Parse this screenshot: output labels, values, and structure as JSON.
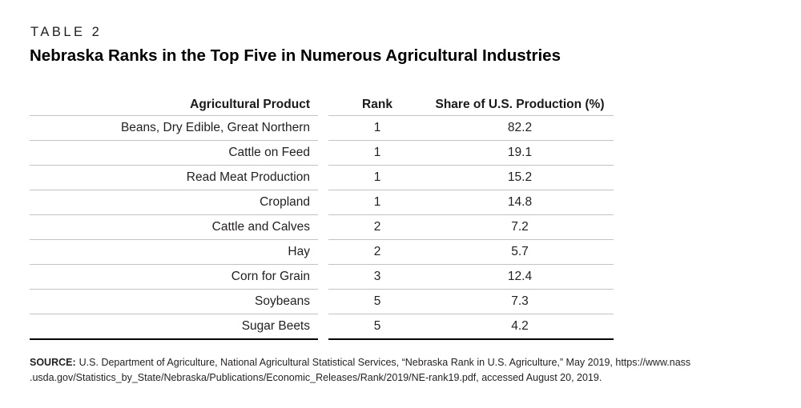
{
  "label": "TABLE 2",
  "title": "Nebraska Ranks in the Top Five in Numerous Agricultural Industries",
  "table": {
    "columns": [
      "Agricultural Product",
      "Rank",
      "Share of U.S. Production (%)"
    ],
    "rows": [
      {
        "product": "Beans, Dry Edible, Great Northern",
        "rank": "1",
        "share": "82.2"
      },
      {
        "product": "Cattle on Feed",
        "rank": "1",
        "share": "19.1"
      },
      {
        "product": "Read Meat Production",
        "rank": "1",
        "share": "15.2"
      },
      {
        "product": "Cropland",
        "rank": "1",
        "share": "14.8"
      },
      {
        "product": "Cattle and Calves",
        "rank": "2",
        "share": "7.2"
      },
      {
        "product": "Hay",
        "rank": "2",
        "share": "5.7"
      },
      {
        "product": "Corn for Grain",
        "rank": "3",
        "share": "12.4"
      },
      {
        "product": "Soybeans",
        "rank": "5",
        "share": "7.3"
      },
      {
        "product": "Sugar Beets",
        "rank": "5",
        "share": "4.2"
      }
    ]
  },
  "source": {
    "label": "SOURCE:",
    "line1": "U.S. Department of Agriculture, National Agricultural Statistical Services, “Nebraska Rank in U.S. Agriculture,” May 2019, https://www.nass",
    "line2": ".usda.gov/Statistics_by_State/Nebraska/Publications/Economic_Releases/Rank/2019/NE-rank19.pdf, accessed August 20, 2019."
  },
  "colors": {
    "row_rule": "#c3c3c3",
    "bottom_rule": "#000000",
    "text": "#231f20"
  }
}
